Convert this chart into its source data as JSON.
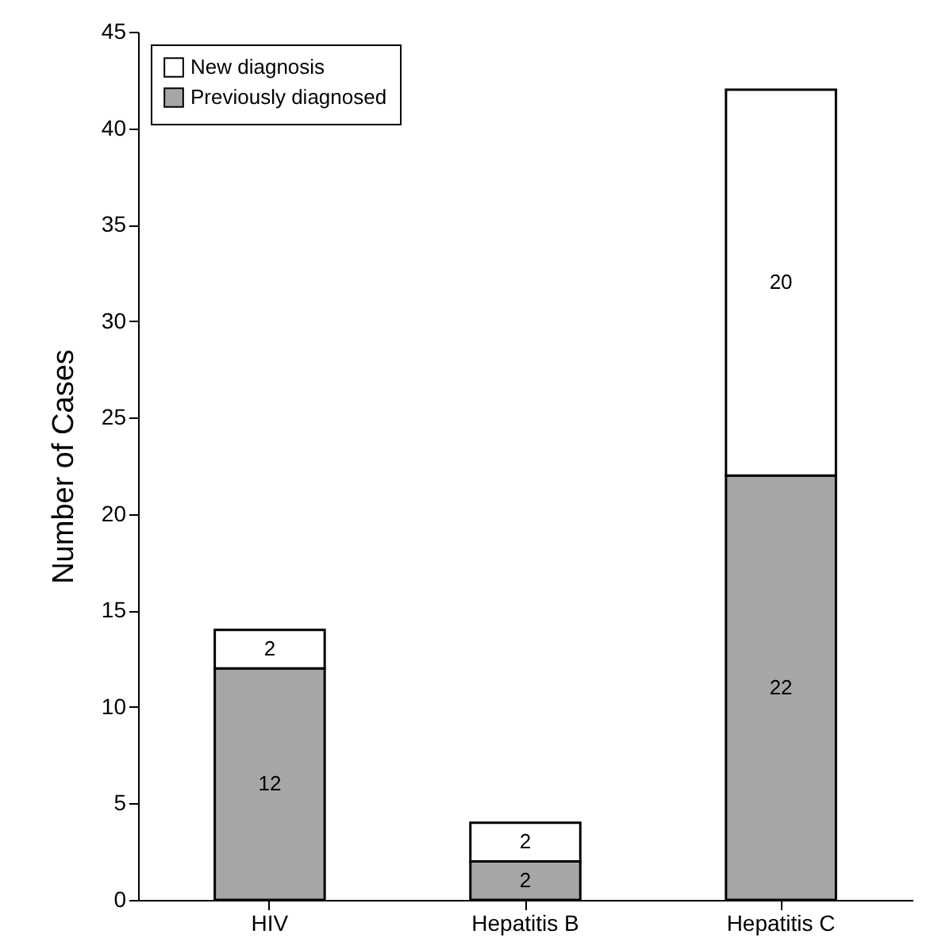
{
  "chart_data": {
    "type": "bar",
    "ylabel": "Number of Cases",
    "categories": [
      "HIV",
      "Hepatitis B",
      "Hepatitis C"
    ],
    "stacked": true,
    "series": [
      {
        "name": "Previously diagnosed",
        "color": "#a6a6a6",
        "values": [
          12,
          2,
          22
        ]
      },
      {
        "name": "New diagnosis",
        "color": "#ffffff",
        "values": [
          2,
          2,
          20
        ]
      }
    ],
    "ylim": [
      0,
      45
    ],
    "yticks": [
      0,
      5,
      10,
      15,
      20,
      25,
      30,
      35,
      40,
      45
    ],
    "data_labels": true,
    "grid": false,
    "legend": "top left"
  }
}
